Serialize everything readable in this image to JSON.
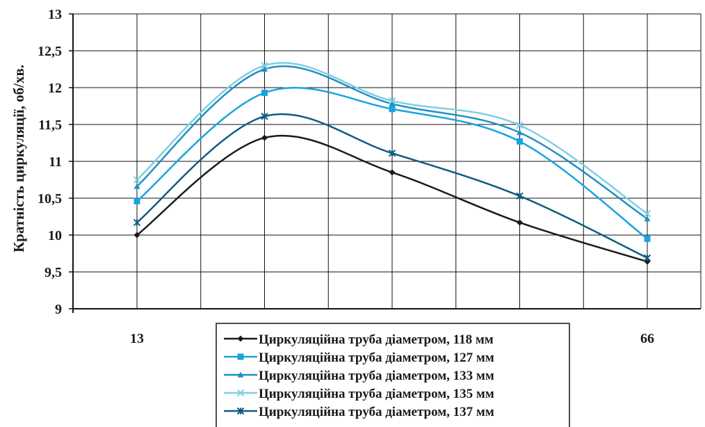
{
  "chart_data": {
    "type": "line",
    "ylabel": "Кратність циркуляції, об/хв.",
    "xlabel": "",
    "ylim": [
      9,
      13
    ],
    "y_ticks": [
      "9",
      "9,5",
      "10",
      "10,5",
      "11",
      "11,5",
      "12",
      "12,5",
      "13"
    ],
    "x_tick_labels": [
      "13",
      "",
      "",
      "",
      "66"
    ],
    "grid": true,
    "legend_position": "bottom-center",
    "series": [
      {
        "name": "Циркуляційна труба діаметром,  118 мм",
        "color": "#1a1a1a",
        "marker": "diamond",
        "values": [
          10.0,
          11.32,
          10.85,
          10.17,
          9.64
        ]
      },
      {
        "name": "Циркуляційна труба діаметром,  127 мм",
        "color": "#1aa3e0",
        "marker": "square",
        "values": [
          10.46,
          11.93,
          11.71,
          11.27,
          9.95
        ]
      },
      {
        "name": "Циркуляційна труба діаметром,  133 мм",
        "color": "#1f8fc4",
        "marker": "triangle",
        "values": [
          10.66,
          12.25,
          11.78,
          11.39,
          10.22
        ]
      },
      {
        "name": "Циркуляційна труба діаметром,  135 мм",
        "color": "#7fcfe3",
        "marker": "x",
        "values": [
          10.75,
          12.3,
          11.82,
          11.49,
          10.29
        ]
      },
      {
        "name": "Циркуляційна труба діаметром,  137 мм",
        "color": "#0d5d80",
        "marker": "star",
        "values": [
          10.17,
          11.61,
          11.11,
          10.53,
          9.69
        ]
      }
    ]
  }
}
